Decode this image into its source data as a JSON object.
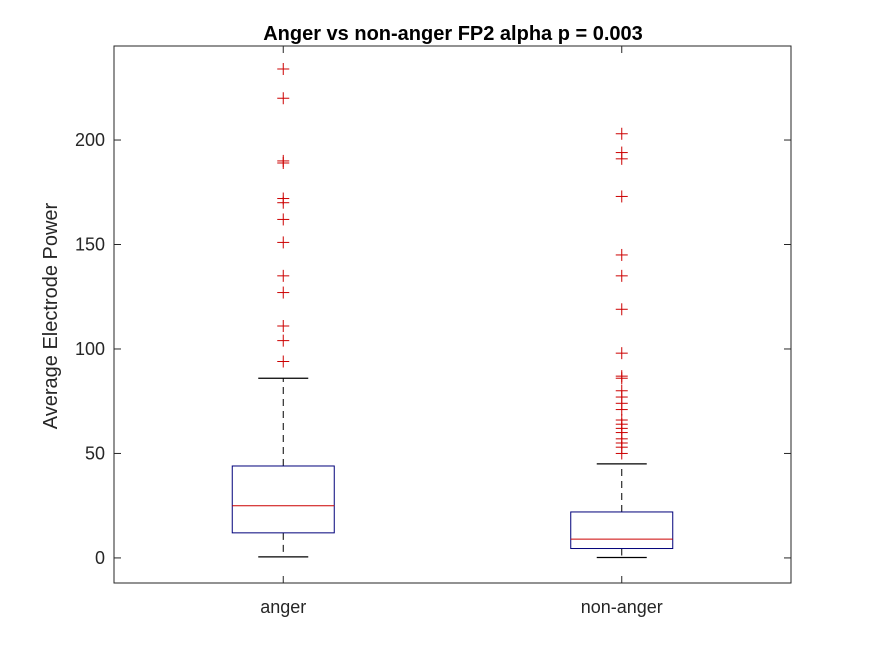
{
  "chart_data": {
    "type": "box",
    "title": "Anger vs non-anger FP2 alpha p = 0.003",
    "xlabel": "",
    "ylabel": "Average Electrode Power",
    "ylim": [
      -12,
      245
    ],
    "yticks": [
      0,
      50,
      100,
      150,
      200
    ],
    "grid": false,
    "categories": [
      "anger",
      "non-anger"
    ],
    "boxes": [
      {
        "category": "anger",
        "whisker_low": 0.5,
        "q1": 12,
        "median": 25,
        "q3": 44,
        "whisker_high": 86,
        "outliers": [
          94,
          104,
          111,
          127,
          135,
          151,
          162,
          170,
          172,
          189,
          190,
          220,
          234
        ]
      },
      {
        "category": "non-anger",
        "whisker_low": 0.2,
        "q1": 4.5,
        "median": 9,
        "q3": 22,
        "whisker_high": 45,
        "outliers": [
          50,
          53,
          55,
          57,
          60,
          62,
          64,
          66,
          71,
          74,
          77,
          80,
          86,
          87,
          98,
          119,
          135,
          145,
          173,
          191,
          194,
          203
        ]
      }
    ],
    "colors": {
      "box": "#00007a",
      "median": "#cc0000",
      "whisker": "#000000",
      "outlier": "#cc0000",
      "axis": "#262626"
    }
  }
}
